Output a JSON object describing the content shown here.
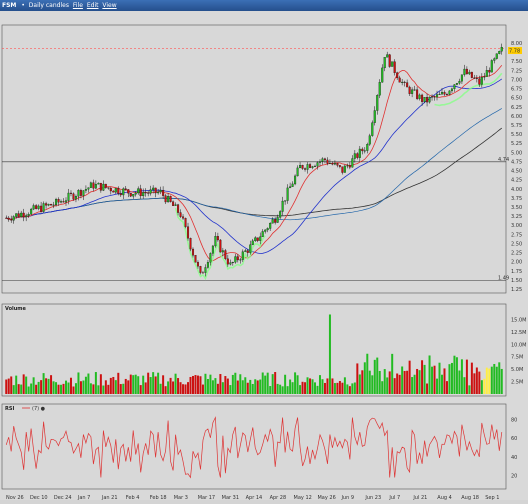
{
  "window": {
    "title": "FSM",
    "subtitle": "Daily candles",
    "menus": [
      "File",
      "Edit",
      "View"
    ]
  },
  "price_panel": {
    "y_ticks": [
      "8.00",
      "7.75",
      "7.50",
      "7.25",
      "7.00",
      "6.75",
      "6.50",
      "6.25",
      "6.00",
      "5.75",
      "5.50",
      "5.25",
      "5.00",
      "4.75",
      "4.50",
      "4.25",
      "4.00",
      "3.75",
      "3.50",
      "3.25",
      "3.00",
      "2.75",
      "2.50",
      "2.25",
      "2.00",
      "1.75",
      "1.50",
      "1.25"
    ],
    "last_price_tag": "7.78",
    "hline_left_label": "4.74",
    "hline_low_label": "1.49",
    "colors": {
      "bull": "#22bb22",
      "bear": "#cc1111",
      "ma_fast": "#e03030",
      "ma_mid": "#2233cc",
      "ma_slow": "#333333",
      "ma_slow2": "#2266aa",
      "highlight": "#88ff88",
      "resistance": "#ff5555"
    }
  },
  "volume_panel": {
    "title": "Volume",
    "y_ticks": [
      "15.0M",
      "12.5M",
      "10.0M",
      "7.5M",
      "5.0M",
      "2.5M"
    ]
  },
  "rsi_panel": {
    "title": "RSI",
    "legend": "(7) ●",
    "y_ticks": [
      "80",
      "60",
      "40",
      "20"
    ],
    "line_color": "#dd3333"
  },
  "x_axis": {
    "labels": [
      "Nov 26",
      "Dec 10",
      "Dec 24",
      "Jan 7",
      "Jan 21",
      "Feb 4",
      "Feb 18",
      "Mar 3",
      "Mar 17",
      "Mar 31",
      "Apr 14",
      "Apr 28",
      "May 12",
      "May 26",
      "Jun 9",
      "Jun 23",
      "Jul 7",
      "Jul 21",
      "Aug 4",
      "Aug 18",
      "Sep 1"
    ]
  }
}
